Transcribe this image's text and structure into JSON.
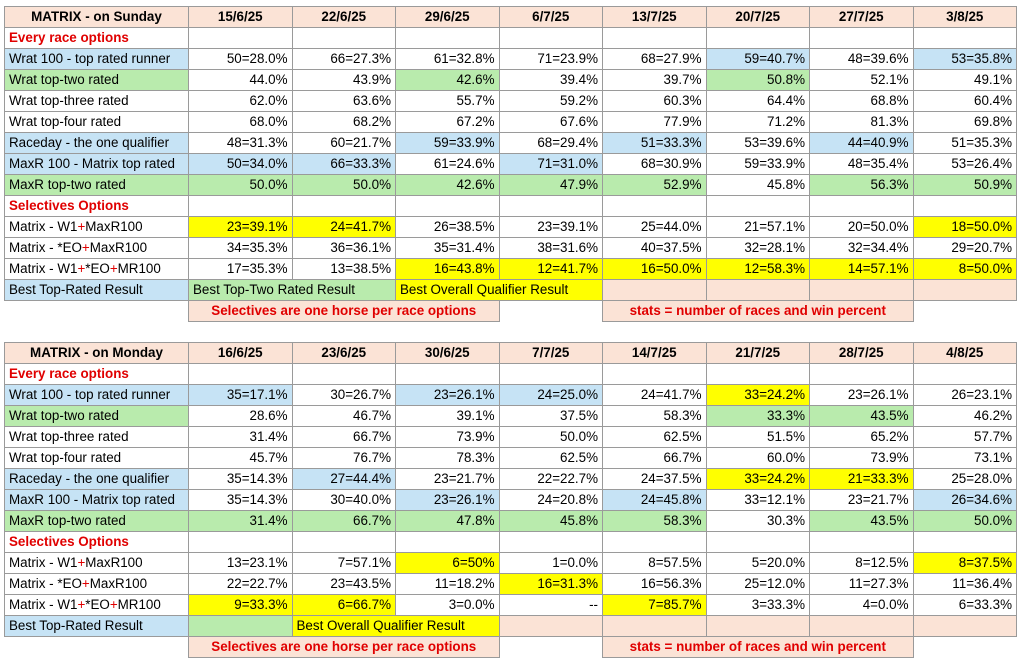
{
  "tables": [
    {
      "title": "MATRIX - on Sunday",
      "dates": [
        "15/6/25",
        "22/6/25",
        "29/6/25",
        "6/7/25",
        "13/7/25",
        "20/7/25",
        "27/7/25",
        "3/8/25"
      ],
      "section1": "Every race options",
      "rows1": [
        {
          "label": "Wrat 100 - top rated runner",
          "cells": [
            {
              "v": "50=28.0%",
              "bg": ""
            },
            {
              "v": "66=27.3%",
              "bg": ""
            },
            {
              "v": "61=32.8%",
              "bg": ""
            },
            {
              "v": "71=23.9%",
              "bg": ""
            },
            {
              "v": "68=27.9%",
              "bg": ""
            },
            {
              "v": "59=40.7%",
              "bg": "blue"
            },
            {
              "v": "48=39.6%",
              "bg": ""
            },
            {
              "v": "53=35.8%",
              "bg": "blue"
            }
          ],
          "label_bg": "blue"
        },
        {
          "label": "Wrat top-two rated",
          "cells": [
            {
              "v": "44.0%",
              "bg": ""
            },
            {
              "v": "43.9%",
              "bg": ""
            },
            {
              "v": "42.6%",
              "bg": "green"
            },
            {
              "v": "39.4%",
              "bg": ""
            },
            {
              "v": "39.7%",
              "bg": ""
            },
            {
              "v": "50.8%",
              "bg": "green"
            },
            {
              "v": "52.1%",
              "bg": ""
            },
            {
              "v": "49.1%",
              "bg": ""
            }
          ],
          "label_bg": "green"
        },
        {
          "label": "Wrat top-three rated",
          "cells": [
            {
              "v": "62.0%",
              "bg": ""
            },
            {
              "v": "63.6%",
              "bg": ""
            },
            {
              "v": "55.7%",
              "bg": ""
            },
            {
              "v": "59.2%",
              "bg": ""
            },
            {
              "v": "60.3%",
              "bg": ""
            },
            {
              "v": "64.4%",
              "bg": ""
            },
            {
              "v": "68.8%",
              "bg": ""
            },
            {
              "v": "60.4%",
              "bg": ""
            }
          ],
          "label_bg": ""
        },
        {
          "label": "Wrat top-four rated",
          "cells": [
            {
              "v": "68.0%",
              "bg": ""
            },
            {
              "v": "68.2%",
              "bg": ""
            },
            {
              "v": "67.2%",
              "bg": ""
            },
            {
              "v": "67.6%",
              "bg": ""
            },
            {
              "v": "77.9%",
              "bg": ""
            },
            {
              "v": "71.2%",
              "bg": ""
            },
            {
              "v": "81.3%",
              "bg": ""
            },
            {
              "v": "69.8%",
              "bg": ""
            }
          ],
          "label_bg": ""
        },
        {
          "label": "Raceday - the one qualifier",
          "cells": [
            {
              "v": "48=31.3%",
              "bg": ""
            },
            {
              "v": "60=21.7%",
              "bg": ""
            },
            {
              "v": "59=33.9%",
              "bg": "blue"
            },
            {
              "v": "68=29.4%",
              "bg": ""
            },
            {
              "v": "51=33.3%",
              "bg": "blue"
            },
            {
              "v": "53=39.6%",
              "bg": ""
            },
            {
              "v": "44=40.9%",
              "bg": "blue"
            },
            {
              "v": "51=35.3%",
              "bg": ""
            }
          ],
          "label_bg": "blue"
        },
        {
          "label": "MaxR 100 - Matrix top rated",
          "cells": [
            {
              "v": "50=34.0%",
              "bg": "blue"
            },
            {
              "v": "66=33.3%",
              "bg": "blue"
            },
            {
              "v": "61=24.6%",
              "bg": ""
            },
            {
              "v": "71=31.0%",
              "bg": "blue"
            },
            {
              "v": "68=30.9%",
              "bg": ""
            },
            {
              "v": "59=33.9%",
              "bg": ""
            },
            {
              "v": "48=35.4%",
              "bg": ""
            },
            {
              "v": "53=26.4%",
              "bg": ""
            }
          ],
          "label_bg": "blue"
        },
        {
          "label": "MaxR top-two rated",
          "cells": [
            {
              "v": "50.0%",
              "bg": "green"
            },
            {
              "v": "50.0%",
              "bg": "green"
            },
            {
              "v": "42.6%",
              "bg": "green"
            },
            {
              "v": "47.9%",
              "bg": "green"
            },
            {
              "v": "52.9%",
              "bg": "green"
            },
            {
              "v": "45.8%",
              "bg": ""
            },
            {
              "v": "56.3%",
              "bg": "green"
            },
            {
              "v": "50.9%",
              "bg": "green"
            }
          ],
          "label_bg": "green"
        }
      ],
      "section2": "Selectives Options",
      "rows2": [
        {
          "label": [
            "Matrix - W1",
            "+",
            "MaxR100"
          ],
          "cells": [
            {
              "v": "23=39.1%",
              "bg": "yellow"
            },
            {
              "v": "24=41.7%",
              "bg": "yellow"
            },
            {
              "v": "26=38.5%",
              "bg": ""
            },
            {
              "v": "23=39.1%",
              "bg": ""
            },
            {
              "v": "25=44.0%",
              "bg": ""
            },
            {
              "v": "21=57.1%",
              "bg": ""
            },
            {
              "v": "20=50.0%",
              "bg": ""
            },
            {
              "v": "18=50.0%",
              "bg": "yellow"
            }
          ]
        },
        {
          "label": [
            "Matrix - *EO",
            "+",
            "MaxR100"
          ],
          "cells": [
            {
              "v": "34=35.3%",
              "bg": ""
            },
            {
              "v": "36=36.1%",
              "bg": ""
            },
            {
              "v": "35=31.4%",
              "bg": ""
            },
            {
              "v": "38=31.6%",
              "bg": ""
            },
            {
              "v": "40=37.5%",
              "bg": ""
            },
            {
              "v": "32=28.1%",
              "bg": ""
            },
            {
              "v": "32=34.4%",
              "bg": ""
            },
            {
              "v": "29=20.7%",
              "bg": ""
            }
          ]
        },
        {
          "label": [
            "Matrix - W1",
            "+",
            "*EO",
            "+",
            "MR100"
          ],
          "cells": [
            {
              "v": "17=35.3%",
              "bg": ""
            },
            {
              "v": "13=38.5%",
              "bg": ""
            },
            {
              "v": "16=43.8%",
              "bg": "yellow"
            },
            {
              "v": "12=41.7%",
              "bg": "yellow"
            },
            {
              "v": "16=50.0%",
              "bg": "yellow"
            },
            {
              "v": "12=58.3%",
              "bg": "yellow"
            },
            {
              "v": "14=57.1%",
              "bg": "yellow"
            },
            {
              "v": "8=50.0%",
              "bg": "yellow"
            }
          ]
        }
      ],
      "legend": {
        "a": "Best Top-Rated Result",
        "b": "Best Top-Two Rated Result",
        "c": "Best Overall Qualifier Result"
      },
      "notes": {
        "left": "Selectives are one horse per race options",
        "right": "stats = number of races and win percent"
      }
    },
    {
      "title": "MATRIX - on Monday",
      "dates": [
        "16/6/25",
        "23/6/25",
        "30/6/25",
        "7/7/25",
        "14/7/25",
        "21/7/25",
        "28/7/25",
        "4/8/25"
      ],
      "section1": "Every race options",
      "rows1": [
        {
          "label": "Wrat 100 - top rated runner",
          "cells": [
            {
              "v": "35=17.1%",
              "bg": "blue"
            },
            {
              "v": "30=26.7%",
              "bg": ""
            },
            {
              "v": "23=26.1%",
              "bg": "blue"
            },
            {
              "v": "24=25.0%",
              "bg": "blue"
            },
            {
              "v": "24=41.7%",
              "bg": ""
            },
            {
              "v": "33=24.2%",
              "bg": "yellow"
            },
            {
              "v": "23=26.1%",
              "bg": ""
            },
            {
              "v": "26=23.1%",
              "bg": ""
            }
          ],
          "label_bg": "blue"
        },
        {
          "label": "Wrat top-two rated",
          "cells": [
            {
              "v": "28.6%",
              "bg": ""
            },
            {
              "v": "46.7%",
              "bg": ""
            },
            {
              "v": "39.1%",
              "bg": ""
            },
            {
              "v": "37.5%",
              "bg": ""
            },
            {
              "v": "58.3%",
              "bg": ""
            },
            {
              "v": "33.3%",
              "bg": "green"
            },
            {
              "v": "43.5%",
              "bg": "green"
            },
            {
              "v": "46.2%",
              "bg": ""
            }
          ],
          "label_bg": "green"
        },
        {
          "label": "Wrat top-three rated",
          "cells": [
            {
              "v": "31.4%",
              "bg": ""
            },
            {
              "v": "66.7%",
              "bg": ""
            },
            {
              "v": "73.9%",
              "bg": ""
            },
            {
              "v": "50.0%",
              "bg": ""
            },
            {
              "v": "62.5%",
              "bg": ""
            },
            {
              "v": "51.5%",
              "bg": ""
            },
            {
              "v": "65.2%",
              "bg": ""
            },
            {
              "v": "57.7%",
              "bg": ""
            }
          ],
          "label_bg": ""
        },
        {
          "label": "Wrat top-four rated",
          "cells": [
            {
              "v": "45.7%",
              "bg": ""
            },
            {
              "v": "76.7%",
              "bg": ""
            },
            {
              "v": "78.3%",
              "bg": ""
            },
            {
              "v": "62.5%",
              "bg": ""
            },
            {
              "v": "66.7%",
              "bg": ""
            },
            {
              "v": "60.0%",
              "bg": ""
            },
            {
              "v": "73.9%",
              "bg": ""
            },
            {
              "v": "73.1%",
              "bg": ""
            }
          ],
          "label_bg": ""
        },
        {
          "label": "Raceday - the one qualifier",
          "cells": [
            {
              "v": "35=14.3%",
              "bg": ""
            },
            {
              "v": "27=44.4%",
              "bg": "blue"
            },
            {
              "v": "23=21.7%",
              "bg": ""
            },
            {
              "v": "22=22.7%",
              "bg": ""
            },
            {
              "v": "24=37.5%",
              "bg": ""
            },
            {
              "v": "33=24.2%",
              "bg": "yellow"
            },
            {
              "v": "21=33.3%",
              "bg": "yellow"
            },
            {
              "v": "25=28.0%",
              "bg": ""
            }
          ],
          "label_bg": "blue"
        },
        {
          "label": "MaxR 100 - Matrix top rated",
          "cells": [
            {
              "v": "35=14.3%",
              "bg": ""
            },
            {
              "v": "30=40.0%",
              "bg": ""
            },
            {
              "v": "23=26.1%",
              "bg": "blue"
            },
            {
              "v": "24=20.8%",
              "bg": ""
            },
            {
              "v": "24=45.8%",
              "bg": "blue"
            },
            {
              "v": "33=12.1%",
              "bg": ""
            },
            {
              "v": "23=21.7%",
              "bg": ""
            },
            {
              "v": "26=34.6%",
              "bg": "blue"
            }
          ],
          "label_bg": "blue"
        },
        {
          "label": "MaxR top-two rated",
          "cells": [
            {
              "v": "31.4%",
              "bg": "green"
            },
            {
              "v": "66.7%",
              "bg": "green"
            },
            {
              "v": "47.8%",
              "bg": "green"
            },
            {
              "v": "45.8%",
              "bg": "green"
            },
            {
              "v": "58.3%",
              "bg": "green"
            },
            {
              "v": "30.3%",
              "bg": ""
            },
            {
              "v": "43.5%",
              "bg": "green"
            },
            {
              "v": "50.0%",
              "bg": "green"
            }
          ],
          "label_bg": "green"
        }
      ],
      "section2": "Selectives Options",
      "rows2": [
        {
          "label": [
            "Matrix - W1",
            "+",
            "MaxR100"
          ],
          "cells": [
            {
              "v": "13=23.1%",
              "bg": ""
            },
            {
              "v": "7=57.1%",
              "bg": ""
            },
            {
              "v": "6=50%",
              "bg": "yellow"
            },
            {
              "v": "1=0.0%",
              "bg": ""
            },
            {
              "v": "8=57.5%",
              "bg": ""
            },
            {
              "v": "5=20.0%",
              "bg": ""
            },
            {
              "v": "8=12.5%",
              "bg": ""
            },
            {
              "v": "8=37.5%",
              "bg": "yellow"
            }
          ]
        },
        {
          "label": [
            "Matrix - *EO",
            "+",
            "MaxR100"
          ],
          "cells": [
            {
              "v": "22=22.7%",
              "bg": ""
            },
            {
              "v": "23=43.5%",
              "bg": ""
            },
            {
              "v": "11=18.2%",
              "bg": ""
            },
            {
              "v": "16=31.3%",
              "bg": "yellow"
            },
            {
              "v": "16=56.3%",
              "bg": ""
            },
            {
              "v": "25=12.0%",
              "bg": ""
            },
            {
              "v": "11=27.3%",
              "bg": ""
            },
            {
              "v": "11=36.4%",
              "bg": ""
            }
          ]
        },
        {
          "label": [
            "Matrix - W1",
            "+",
            "*EO",
            "+",
            "MR100"
          ],
          "cells": [
            {
              "v": "9=33.3%",
              "bg": "yellow"
            },
            {
              "v": "6=66.7%",
              "bg": "yellow"
            },
            {
              "v": "3=0.0%",
              "bg": ""
            },
            {
              "v": "--",
              "bg": ""
            },
            {
              "v": "7=85.7%",
              "bg": "yellow"
            },
            {
              "v": "3=33.3%",
              "bg": ""
            },
            {
              "v": "4=0.0%",
              "bg": ""
            },
            {
              "v": "6=33.3%",
              "bg": ""
            }
          ]
        }
      ],
      "legend": {
        "a": "Best Top-Rated Result",
        "b": "",
        "c": "Best Overall Qualifier Result"
      },
      "notes": {
        "left": "Selectives are one horse per race options",
        "right": "stats = number of races and win percent"
      }
    }
  ]
}
